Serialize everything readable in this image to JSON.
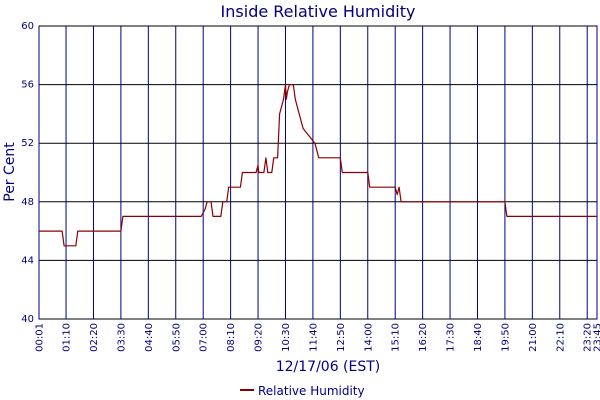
{
  "chart_data": {
    "type": "line",
    "title": "Inside Relative Humidity",
    "xlabel": "12/17/06 (EST)",
    "ylabel": "Per Cent",
    "ylim": [
      40,
      60
    ],
    "yticks": [
      "40",
      "44",
      "48",
      "52",
      "56",
      "60"
    ],
    "xlim_minutes": [
      1,
      1425
    ],
    "xticks": [
      "00:01",
      "01:10",
      "02:20",
      "03:30",
      "04:40",
      "05:50",
      "07:00",
      "08:10",
      "09:20",
      "10:30",
      "11:40",
      "12:50",
      "14:00",
      "15:10",
      "16:20",
      "17:30",
      "18:40",
      "19:50",
      "21:00",
      "22:10",
      "23:20",
      "23:45"
    ],
    "grid": true,
    "legend": "bottom-center",
    "series": [
      {
        "name": "Relative Humidity",
        "color": "#8b0000",
        "points": [
          [
            "00:01",
            46
          ],
          [
            "01:00",
            46
          ],
          [
            "01:05",
            45
          ],
          [
            "01:35",
            45
          ],
          [
            "01:40",
            46
          ],
          [
            "03:30",
            46
          ],
          [
            "03:35",
            47
          ],
          [
            "06:55",
            47
          ],
          [
            "07:05",
            47.5
          ],
          [
            "07:10",
            48
          ],
          [
            "07:20",
            48
          ],
          [
            "07:25",
            47
          ],
          [
            "07:45",
            47
          ],
          [
            "07:50",
            48
          ],
          [
            "08:00",
            48
          ],
          [
            "08:05",
            49
          ],
          [
            "08:35",
            49
          ],
          [
            "08:40",
            50
          ],
          [
            "09:15",
            50
          ],
          [
            "09:20",
            50.5
          ],
          [
            "09:22",
            50
          ],
          [
            "09:35",
            50
          ],
          [
            "09:40",
            51
          ],
          [
            "09:45",
            50
          ],
          [
            "09:55",
            50
          ],
          [
            "10:00",
            51
          ],
          [
            "10:10",
            51
          ],
          [
            "10:15",
            54
          ],
          [
            "10:25",
            55
          ],
          [
            "10:30",
            56
          ],
          [
            "10:32",
            55
          ],
          [
            "10:35",
            55.5
          ],
          [
            "10:40",
            56
          ],
          [
            "10:50",
            56
          ],
          [
            "10:55",
            55
          ],
          [
            "11:05",
            54
          ],
          [
            "11:15",
            53
          ],
          [
            "11:45",
            52
          ],
          [
            "11:55",
            51
          ],
          [
            "12:50",
            51
          ],
          [
            "12:55",
            50
          ],
          [
            "14:00",
            50
          ],
          [
            "14:05",
            49
          ],
          [
            "15:10",
            49
          ],
          [
            "15:15",
            48.5
          ],
          [
            "15:20",
            49
          ],
          [
            "15:25",
            48
          ],
          [
            "19:50",
            48
          ],
          [
            "19:55",
            47
          ],
          [
            "23:45",
            47
          ]
        ]
      }
    ]
  }
}
